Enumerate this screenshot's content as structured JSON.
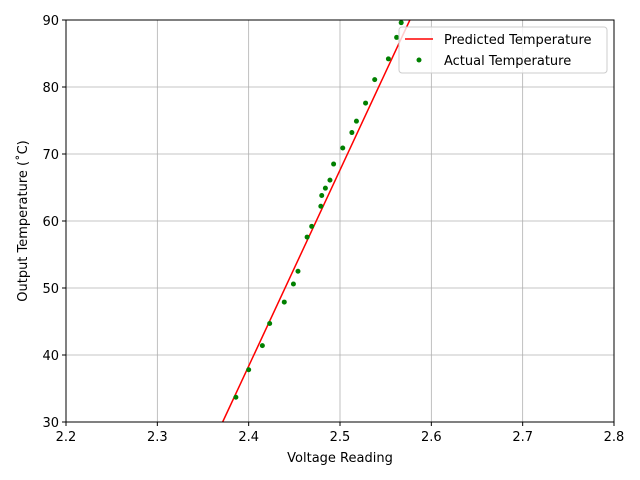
{
  "chart_data": {
    "type": "scatter",
    "title": "",
    "xlabel": "Voltage Reading",
    "ylabel": "Output Temperature (˚C)",
    "xlim": [
      2.2,
      2.8
    ],
    "ylim": [
      30,
      90
    ],
    "xticks": [
      "2.2",
      "2.3",
      "2.4",
      "2.5",
      "2.6",
      "2.7",
      "2.8"
    ],
    "yticks": [
      "30",
      "40",
      "50",
      "60",
      "70",
      "80",
      "90"
    ],
    "grid": true,
    "legend_position": "top-right",
    "series": [
      {
        "name": "Predicted Temperature",
        "kind": "line",
        "color": "#ff0000",
        "x": [
          2.3715,
          2.5765
        ],
        "y": [
          30,
          90
        ]
      },
      {
        "name": "Actual Temperature",
        "kind": "points",
        "color": "#008000",
        "x": [
          2.386,
          2.4,
          2.415,
          2.423,
          2.439,
          2.449,
          2.454,
          2.464,
          2.469,
          2.479,
          2.48,
          2.484,
          2.489,
          2.493,
          2.503,
          2.513,
          2.518,
          2.528,
          2.538,
          2.553,
          2.562,
          2.567
        ],
        "y": [
          33.7,
          37.8,
          41.4,
          44.7,
          47.9,
          50.6,
          52.5,
          57.6,
          59.2,
          62.2,
          63.8,
          64.9,
          66.1,
          68.5,
          70.9,
          73.2,
          74.9,
          77.6,
          81.1,
          84.2,
          87.4,
          89.6
        ]
      }
    ]
  }
}
